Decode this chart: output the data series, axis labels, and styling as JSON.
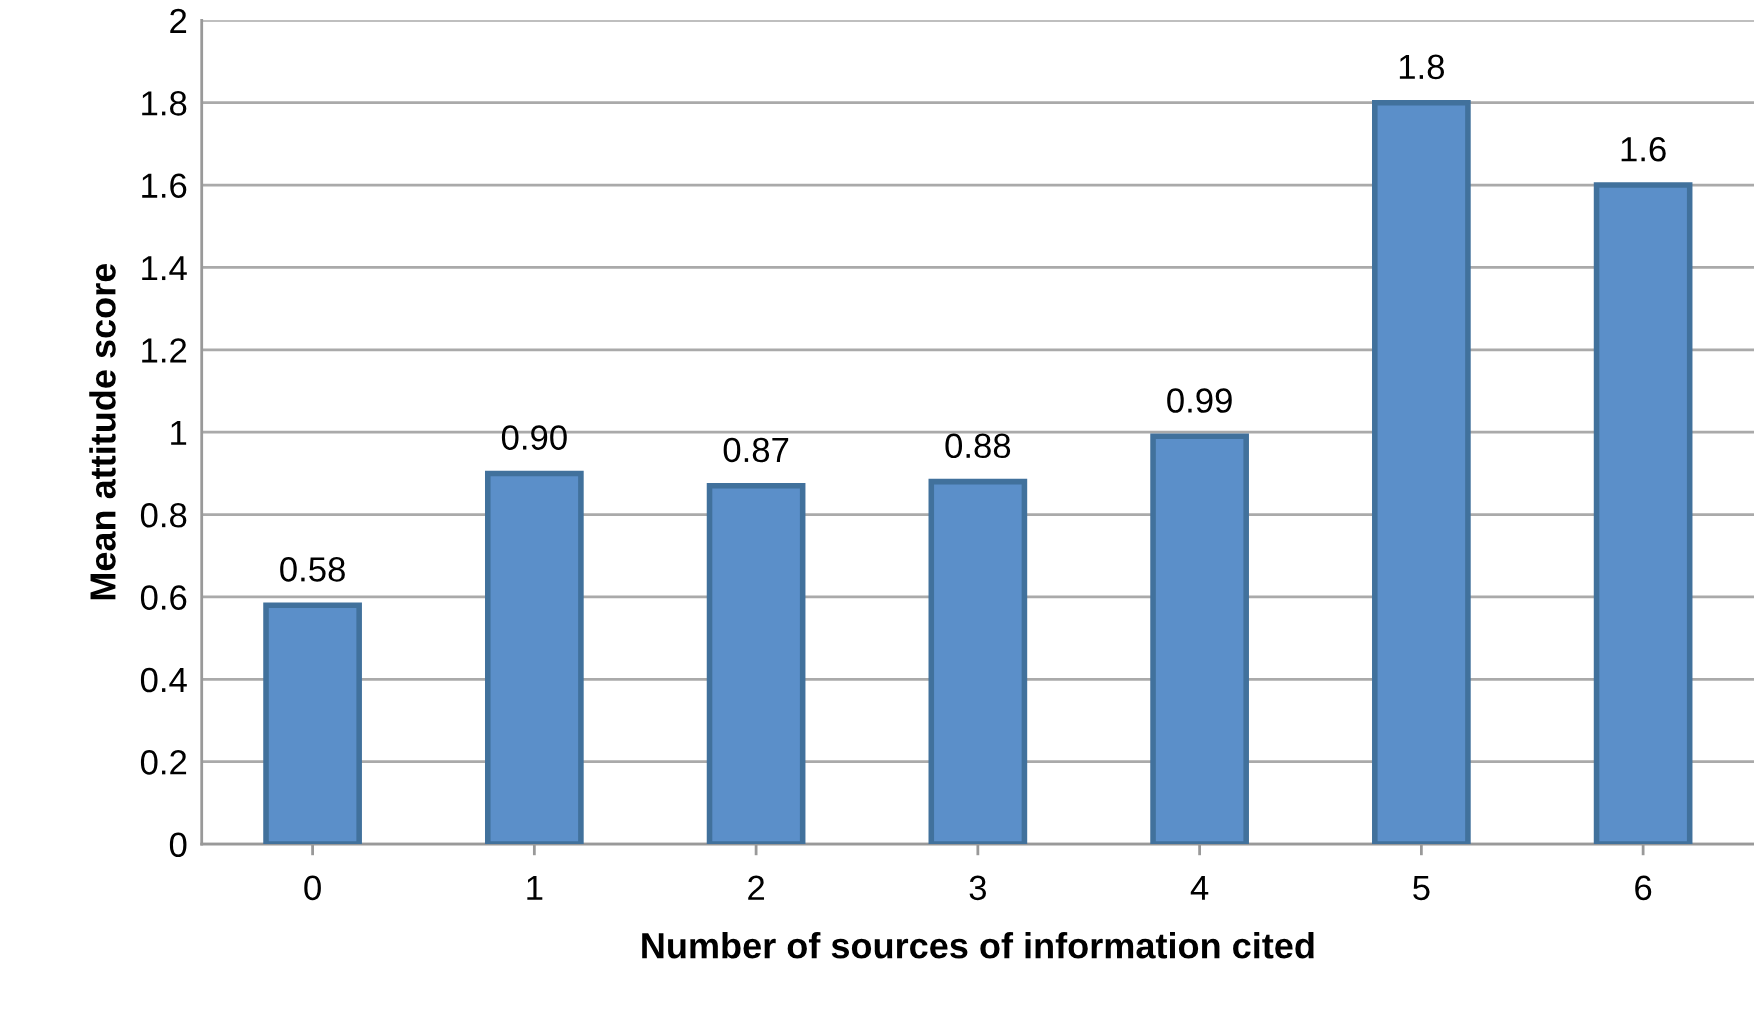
{
  "chart_data": {
    "type": "bar",
    "xlabel": "Number of sources of information cited",
    "ylabel": "Mean attitude score",
    "categories": [
      "0",
      "1",
      "2",
      "3",
      "4",
      "5",
      "6"
    ],
    "values": [
      0.58,
      0.9,
      0.87,
      0.88,
      0.99,
      1.8,
      1.6
    ],
    "value_labels": [
      "0.58",
      "0.90",
      "0.87",
      "0.88",
      "0.99",
      "1.8",
      "1.6"
    ],
    "color": "#5b8fc9",
    "ylim": [
      0,
      2
    ],
    "yticks": [
      0,
      0.2,
      0.4,
      0.6,
      0.8,
      1,
      1.2,
      1.4,
      1.6,
      1.8,
      2
    ],
    "grid": "y",
    "legend": false
  }
}
